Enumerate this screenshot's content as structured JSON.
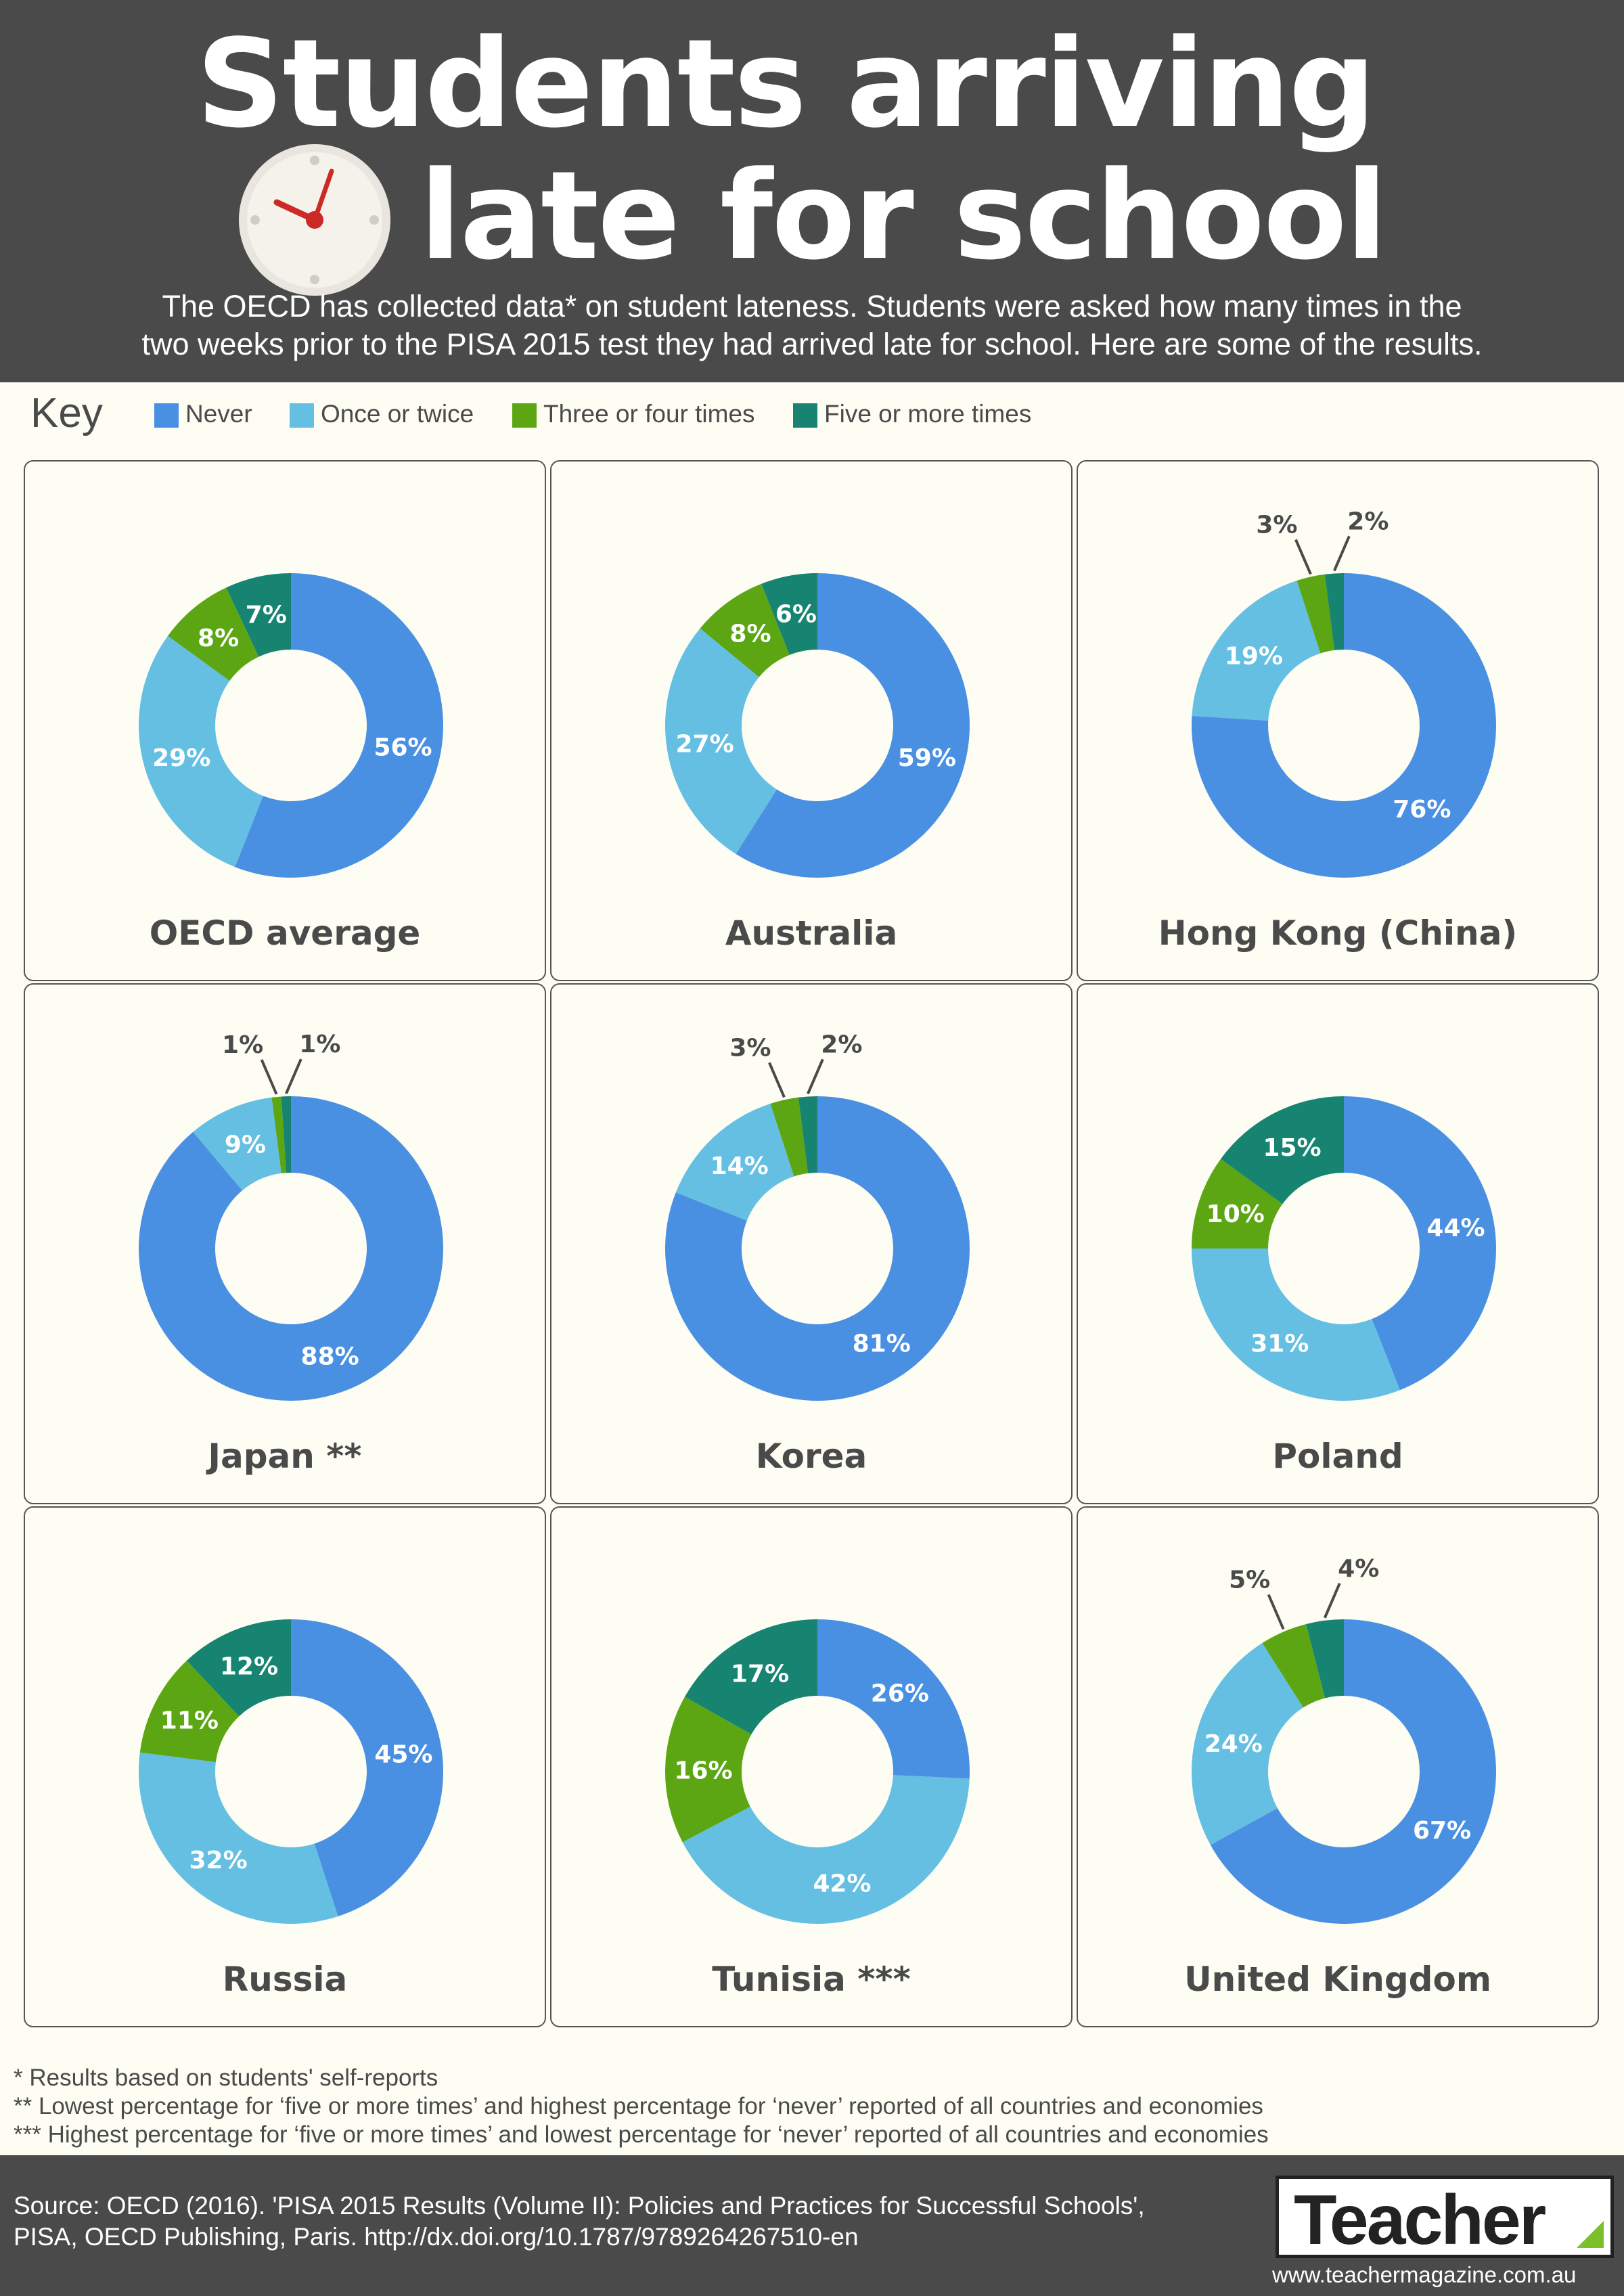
{
  "title": {
    "line1": "Students arriving",
    "line2": "late for school"
  },
  "intro": {
    "line1": "The OECD has collected data* on student lateness. Students were asked how many times in the",
    "line2": "two weeks prior to the PISA 2015 test they had arrived late for school. Here are some of the results."
  },
  "key": {
    "title": "Key",
    "items": [
      {
        "label": "Never",
        "color": "#4a90e2"
      },
      {
        "label": "Once or twice",
        "color": "#64bfe3"
      },
      {
        "label": "Three or four times",
        "color": "#5ca614"
      },
      {
        "label": "Five or more times",
        "color": "#168470"
      }
    ]
  },
  "chart_data": [
    {
      "type": "pie",
      "title": "OECD average",
      "categories": [
        "Never",
        "Once or twice",
        "Three or four times",
        "Five or more times"
      ],
      "values": [
        56,
        29,
        8,
        7
      ],
      "labels": [
        "56%",
        "29%",
        "8%",
        "7%"
      ]
    },
    {
      "type": "pie",
      "title": "Australia",
      "categories": [
        "Never",
        "Once or twice",
        "Three or four times",
        "Five or more times"
      ],
      "values": [
        59,
        27,
        8,
        6
      ],
      "labels": [
        "59%",
        "27%",
        "8%",
        "6%"
      ]
    },
    {
      "type": "pie",
      "title": "Hong Kong (China)",
      "categories": [
        "Never",
        "Once or twice",
        "Three or four times",
        "Five or more times"
      ],
      "values": [
        76,
        19,
        3,
        2
      ],
      "labels": [
        "76%",
        "19%",
        "3%",
        "2%"
      ]
    },
    {
      "type": "pie",
      "title": "Japan **",
      "categories": [
        "Never",
        "Once or twice",
        "Three or four times",
        "Five or more times"
      ],
      "values": [
        88,
        9,
        1,
        1
      ],
      "labels": [
        "88%",
        "9%",
        "1%",
        "1%"
      ]
    },
    {
      "type": "pie",
      "title": "Korea",
      "categories": [
        "Never",
        "Once or twice",
        "Three or four times",
        "Five or more times"
      ],
      "values": [
        81,
        14,
        3,
        2
      ],
      "labels": [
        "81%",
        "14%",
        "3%",
        "2%"
      ]
    },
    {
      "type": "pie",
      "title": "Poland",
      "categories": [
        "Never",
        "Once or twice",
        "Three or four times",
        "Five or more times"
      ],
      "values": [
        44,
        31,
        10,
        15
      ],
      "labels": [
        "44%",
        "31%",
        "10%",
        "15%"
      ]
    },
    {
      "type": "pie",
      "title": "Russia",
      "categories": [
        "Never",
        "Once or twice",
        "Three or four times",
        "Five or more times"
      ],
      "values": [
        45,
        32,
        11,
        12
      ],
      "labels": [
        "45%",
        "32%",
        "11%",
        "12%"
      ]
    },
    {
      "type": "pie",
      "title": "Tunisia ***",
      "categories": [
        "Never",
        "Once or twice",
        "Three or four times",
        "Five or more times"
      ],
      "values": [
        26,
        42,
        16,
        17
      ],
      "labels": [
        "26%",
        "42%",
        "16%",
        "17%"
      ]
    },
    {
      "type": "pie",
      "title": "United Kingdom",
      "categories": [
        "Never",
        "Once or twice",
        "Three or four times",
        "Five or more times"
      ],
      "values": [
        67,
        24,
        5,
        4
      ],
      "labels": [
        "67%",
        "24%",
        "5%",
        "4%"
      ]
    }
  ],
  "footnotes": [
    "* Results based on students' self-reports",
    "** Lowest percentage for ‘five or more times’ and highest percentage for ‘never’ reported of all countries and economies",
    "*** Highest percentage for ‘five or more times’ and lowest percentage for ‘never’ reported of all countries and economies"
  ],
  "source": {
    "line1": "Source: OECD (2016). 'PISA 2015 Results (Volume II): Policies and Practices for Successful Schools',",
    "line2": "PISA, OECD Publishing, Paris. http://dx.doi.org/10.1787/9789264267510-en"
  },
  "logo": {
    "name": "Teacher",
    "url": "www.teachermagazine.com.au"
  }
}
